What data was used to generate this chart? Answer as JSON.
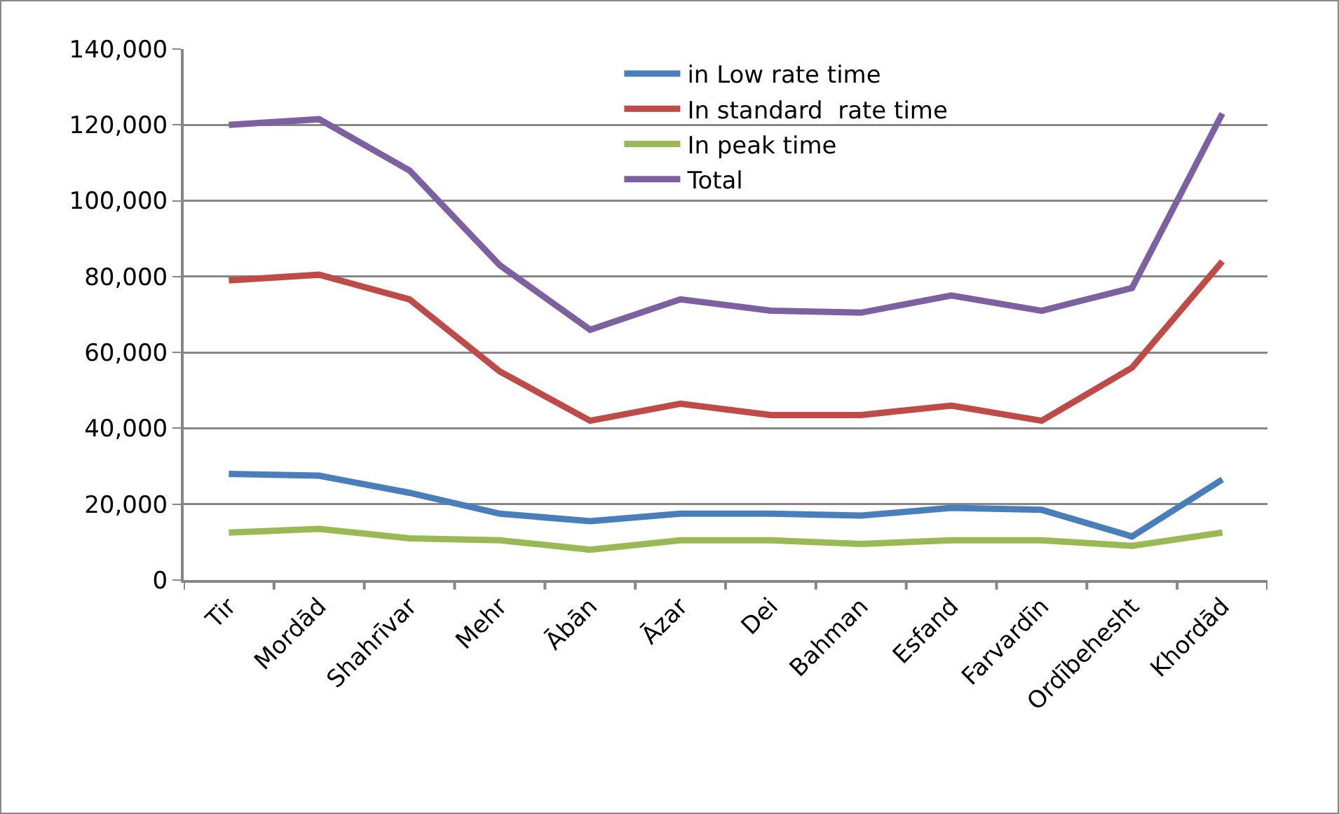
{
  "chart_data": {
    "type": "line",
    "categories": [
      "Tir",
      "Mordād",
      "Shahrīvar",
      "Mehr",
      "Ābān",
      "Āzar",
      "Dei",
      "Bahman",
      "Esfand",
      "Farvardīn",
      "Ordībehesht",
      "Khordād"
    ],
    "series": [
      {
        "name": "in Low rate time",
        "color": "#4a7ebb",
        "values": [
          28000,
          27500,
          23000,
          17500,
          15500,
          17500,
          17500,
          17000,
          19000,
          18500,
          11500,
          26500
        ]
      },
      {
        "name": "In standard  rate time",
        "color": "#be4b48",
        "values": [
          79000,
          80500,
          74000,
          55000,
          42000,
          46500,
          43500,
          43500,
          46000,
          42000,
          56000,
          84000
        ]
      },
      {
        "name": "In peak time",
        "color": "#98b954",
        "values": [
          12500,
          13500,
          11000,
          10500,
          8000,
          10500,
          10500,
          9500,
          10500,
          10500,
          9000,
          12500
        ]
      },
      {
        "name": "Total",
        "color": "#7d60a0",
        "values": [
          120000,
          121500,
          108000,
          83000,
          66000,
          74000,
          71000,
          70500,
          75000,
          71000,
          77000,
          123000
        ]
      }
    ],
    "ylim": [
      0,
      140000
    ],
    "yticks": [
      {
        "value": 0,
        "label": "0"
      },
      {
        "value": 20000,
        "label": "20,000"
      },
      {
        "value": 40000,
        "label": "40,000"
      },
      {
        "value": 60000,
        "label": "60,000"
      },
      {
        "value": 80000,
        "label": "80,000"
      },
      {
        "value": 100000,
        "label": "100,000"
      },
      {
        "value": 120000,
        "label": "120,000"
      },
      {
        "value": 140000,
        "label": "140,000"
      }
    ],
    "grid": "y",
    "legend": "top right",
    "marker": "none",
    "line_style": "solid"
  }
}
